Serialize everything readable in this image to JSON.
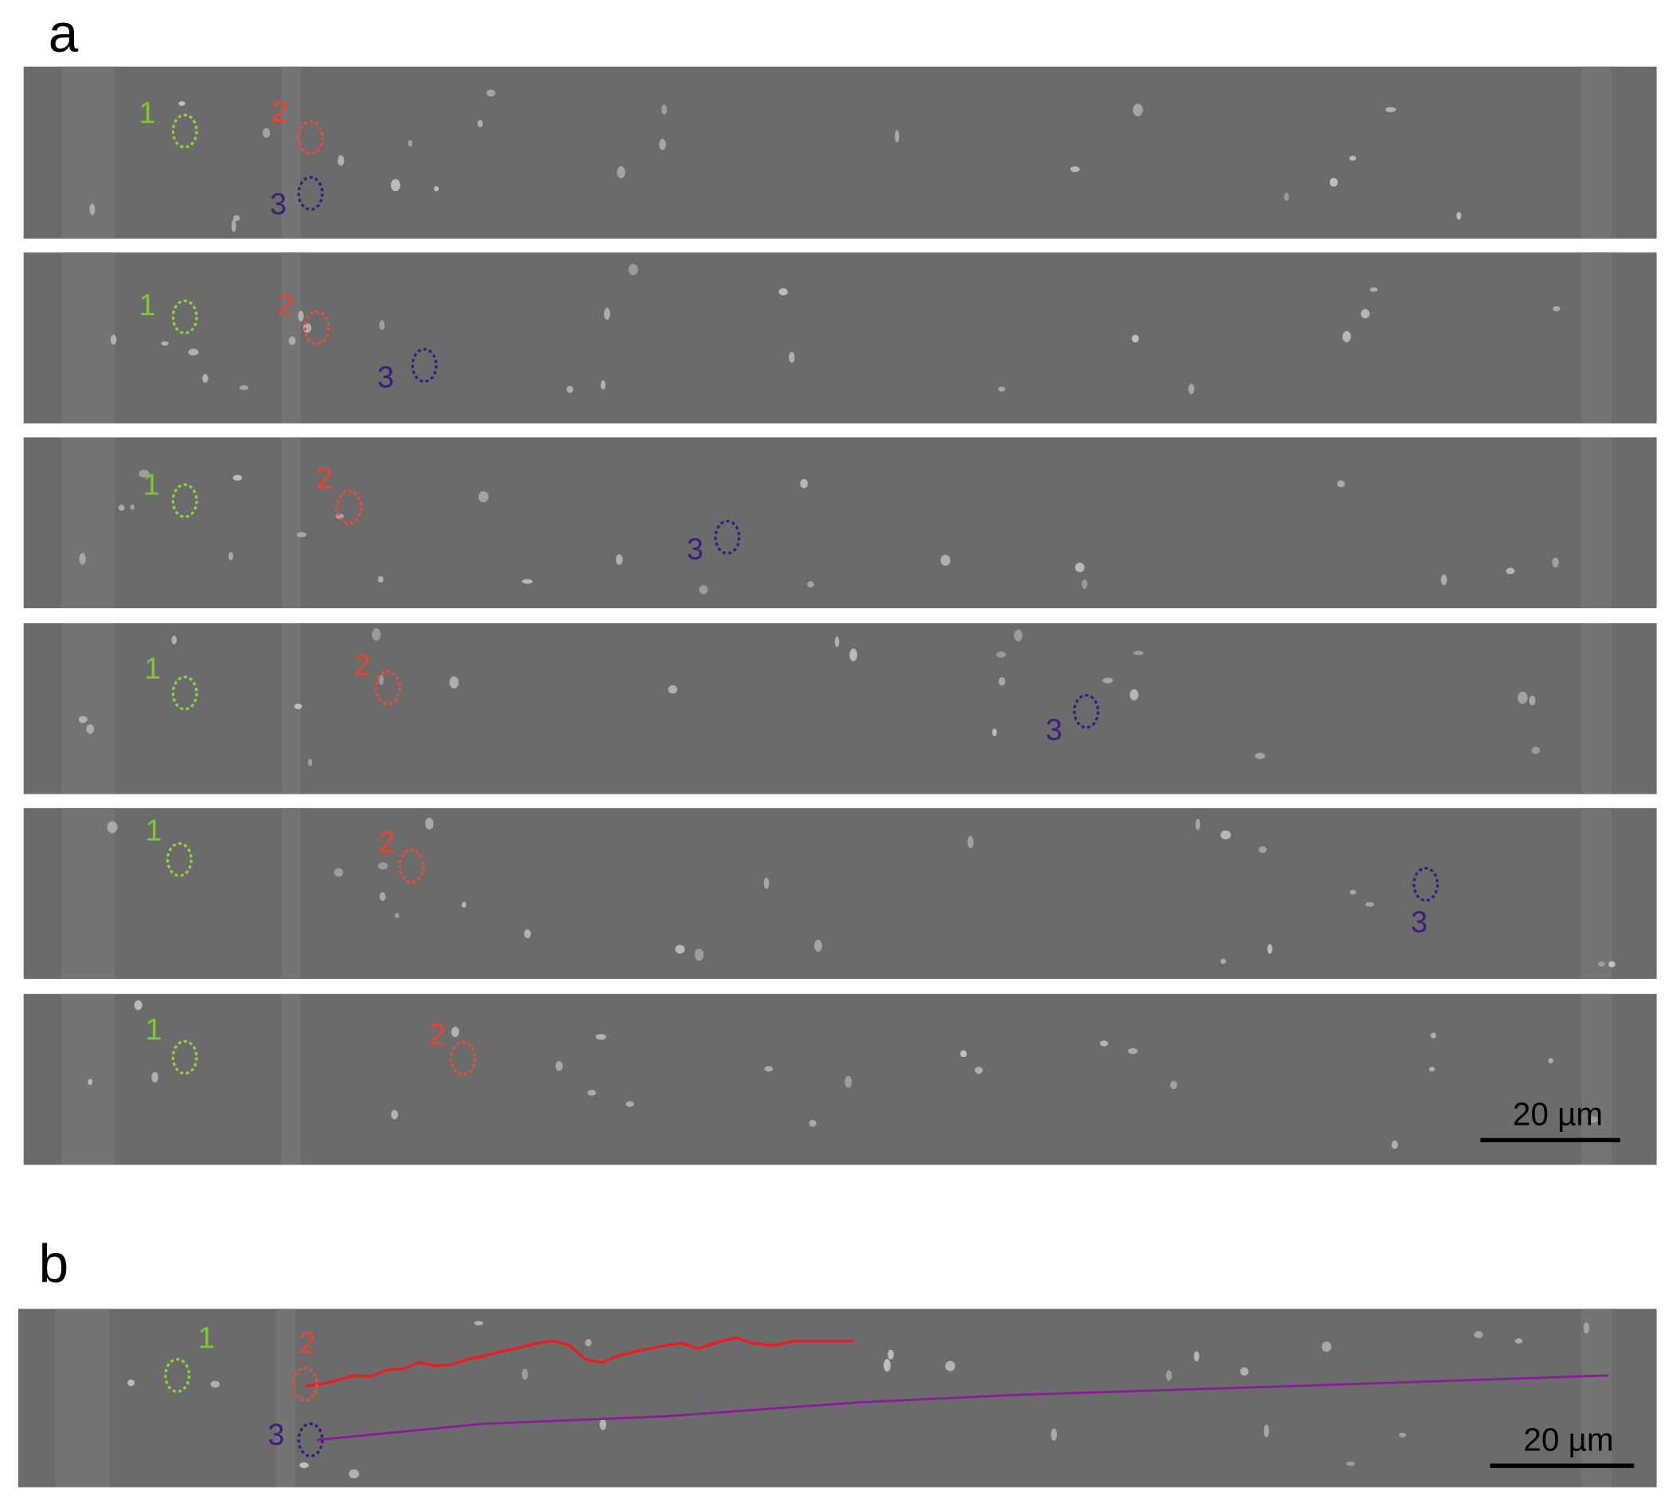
{
  "panel_a": {
    "label": "a",
    "frames": [
      {
        "markers": [
          "1",
          "2",
          "3"
        ]
      },
      {
        "markers": [
          "1",
          "2",
          "3"
        ]
      },
      {
        "markers": [
          "1",
          "2",
          "3"
        ]
      },
      {
        "markers": [
          "1",
          "2",
          "3"
        ]
      },
      {
        "markers": [
          "1",
          "2",
          "3"
        ]
      },
      {
        "markers": [
          "1",
          "2"
        ]
      }
    ],
    "scale_bar": "20 µm"
  },
  "panel_b": {
    "label": "b",
    "markers": [
      "1",
      "2",
      "3"
    ],
    "scale_bar": "20 µm"
  }
}
